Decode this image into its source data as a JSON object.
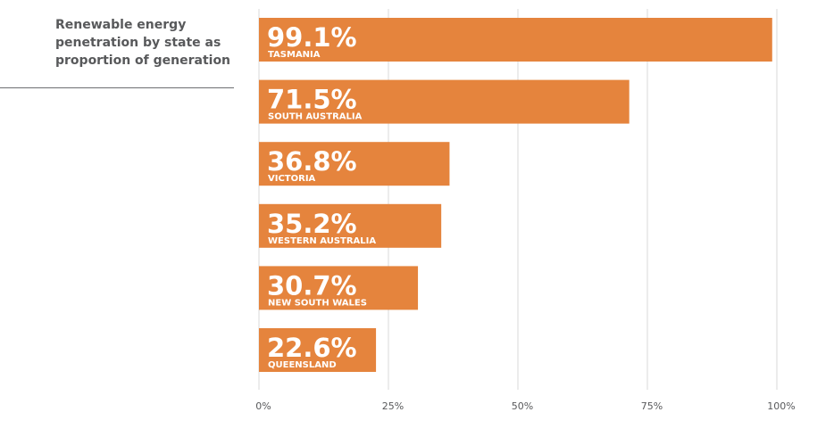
{
  "chart_data": {
    "type": "bar",
    "orientation": "horizontal",
    "title": "Renewable energy penetration by state as proportion of generation",
    "title_lines": [
      "Renewable energy",
      "penetration by state as",
      "proportion of generation"
    ],
    "categories": [
      "TASMANIA",
      "SOUTH AUSTRALIA",
      "VICTORIA",
      "WESTERN AUSTRALIA",
      "NEW SOUTH WALES",
      "QUEENSLAND"
    ],
    "values": [
      99.1,
      71.5,
      36.8,
      35.2,
      30.7,
      22.6
    ],
    "value_labels": [
      "99.1%",
      "71.5%",
      "36.8%",
      "35.2%",
      "30.7%",
      "22.6%"
    ],
    "xlim": [
      0,
      100
    ],
    "xticks": [
      0,
      25,
      50,
      75,
      100
    ],
    "xtick_labels": [
      "0%",
      "25%",
      "50%",
      "75%",
      "100%"
    ],
    "grid": true,
    "legend": "none",
    "colors": {
      "bar": "#e5843d",
      "grid": "#d9d9d9",
      "title": "#58595b",
      "tick_text": "#58595b",
      "bar_text": "#ffffff"
    }
  }
}
